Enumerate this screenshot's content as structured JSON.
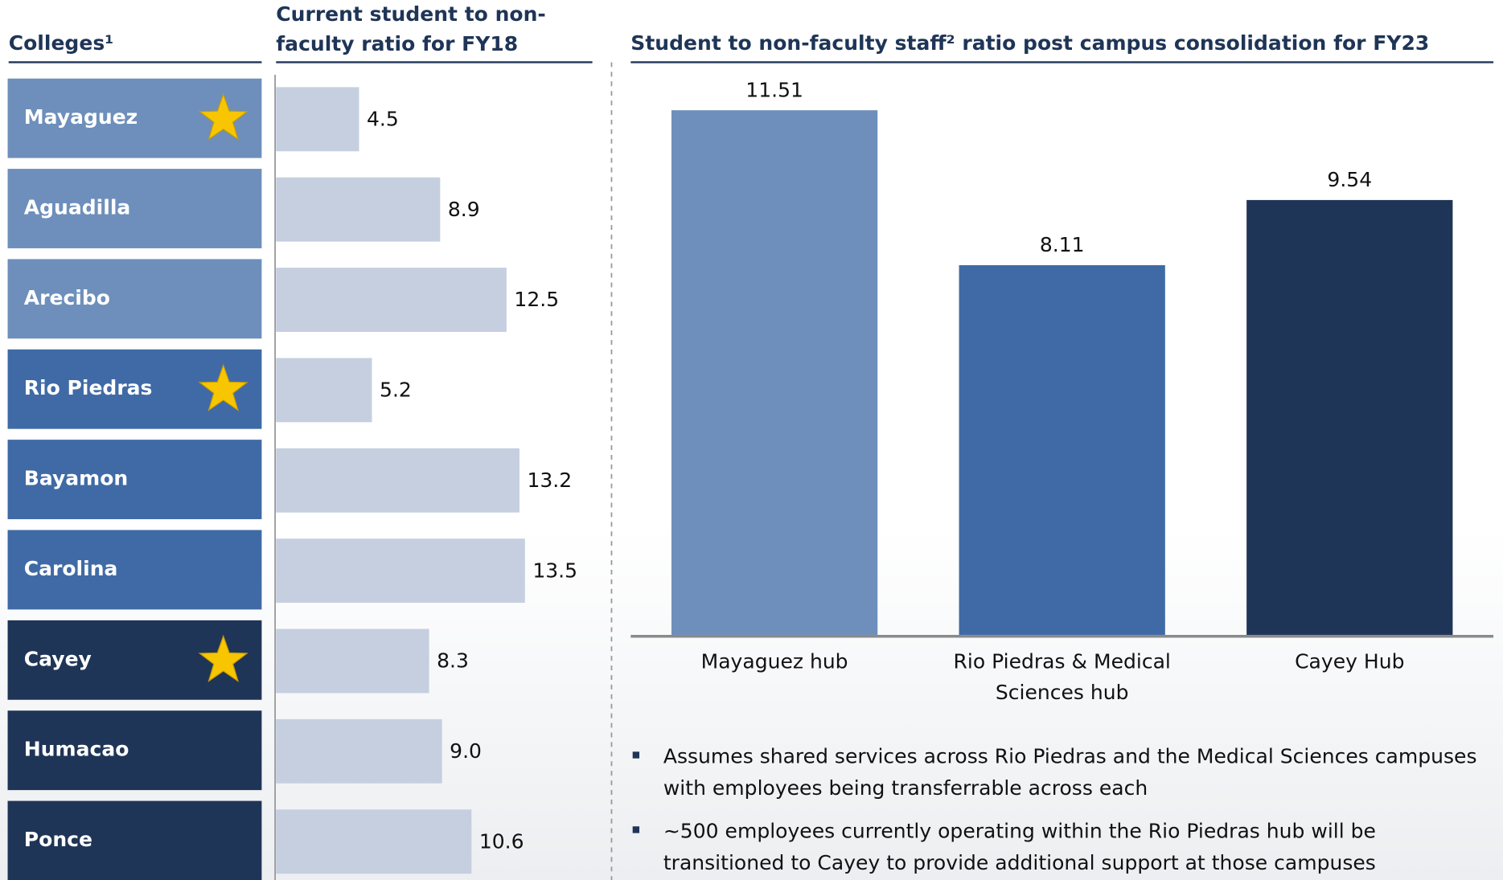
{
  "chart_data": [
    {
      "type": "hbar",
      "title": "Current student to non-faculty ratio for FY18",
      "category_header": "Colleges¹",
      "categories": [
        "Mayaguez",
        "Aguadilla",
        "Arecibo",
        "Rio Piedras",
        "Bayamon",
        "Carolina",
        "Cayey",
        "Humacao",
        "Ponce"
      ],
      "category_colors": [
        "#6e8fbb",
        "#6e8fbb",
        "#6e8fbb",
        "#3f6aa6",
        "#3f6aa6",
        "#3f6aa6",
        "#1f3557",
        "#1f3557",
        "#1f3557"
      ],
      "stars": [
        true,
        false,
        false,
        true,
        false,
        false,
        true,
        false,
        false
      ],
      "values": [
        4.5,
        8.9,
        12.5,
        5.2,
        13.2,
        13.5,
        8.3,
        9.0,
        10.6
      ],
      "value_labels": [
        "4.5",
        "8.9",
        "12.5",
        "5.2",
        "13.2",
        "13.5",
        "8.3",
        "9.0",
        "10.6"
      ],
      "color": "#c5cfe0",
      "xlim": [
        0,
        17
      ]
    },
    {
      "type": "bar",
      "title": "Student to non-faculty staff² ratio post campus consolidation for FY23",
      "categories": [
        "Mayaguez hub",
        "Rio Piedras & Medical Sciences hub",
        "Cayey Hub"
      ],
      "values": [
        11.51,
        8.11,
        9.54
      ],
      "colors": [
        "#6e8fbb",
        "#3f6aa6",
        "#1f3557"
      ],
      "ylim": [
        0,
        12.5
      ]
    }
  ],
  "notes": [
    "Assumes shared services across Rio Piedras and the Medical Sciences campuses with employees being transferrable across each",
    "~500 employees currently operating within the Rio Piedras hub will be transitioned to Cayey to provide additional support at those campuses"
  ]
}
